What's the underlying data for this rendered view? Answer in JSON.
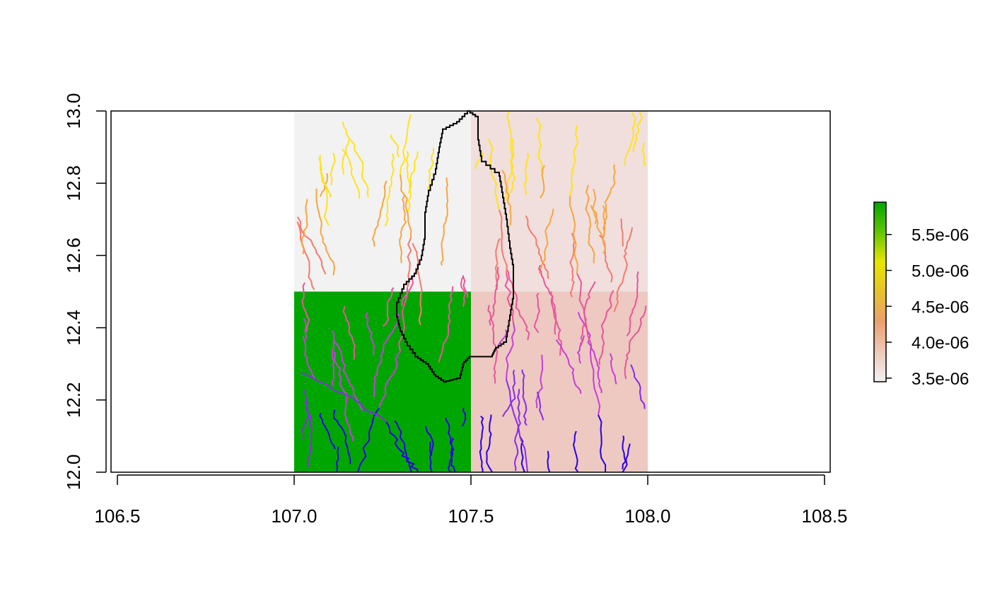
{
  "chart_data": {
    "type": "heatmap",
    "title": "",
    "xlabel": "",
    "ylabel": "",
    "xlim": [
      106.5,
      108.5
    ],
    "ylim": [
      12.0,
      13.0
    ],
    "x_ticks": [
      "106.5",
      "107.0",
      "107.5",
      "108.0",
      "108.5"
    ],
    "y_ticks": [
      "12.0",
      "12.2",
      "12.4",
      "12.6",
      "12.8",
      "13.0"
    ],
    "raster_cells": [
      {
        "x": [
          107.0,
          107.5
        ],
        "y": [
          12.5,
          13.0
        ],
        "value": 3.45e-06,
        "color": "#f2f2f2"
      },
      {
        "x": [
          107.5,
          108.0
        ],
        "y": [
          12.5,
          13.0
        ],
        "value": 3.6e-06,
        "color": "#f0dfdd"
      },
      {
        "x": [
          107.0,
          107.5
        ],
        "y": [
          12.0,
          12.5
        ],
        "value": 5.95e-06,
        "color": "#00a600"
      },
      {
        "x": [
          107.5,
          108.0
        ],
        "y": [
          12.0,
          12.5
        ],
        "value": 3.7e-06,
        "color": "#edc9c1"
      }
    ],
    "legend": {
      "position": "right",
      "ticks": [
        "5.5e-06",
        "5.0e-06",
        "4.5e-06",
        "4.0e-06",
        "3.5e-06"
      ],
      "tick_values": [
        5.5e-06,
        5e-06,
        4.5e-06,
        4e-06,
        3.5e-06
      ],
      "range": [
        3.45e-06,
        5.95e-06
      ],
      "colors": [
        "#f2f2f2",
        "#eec9b8",
        "#eba070",
        "#e6c22a",
        "#e8e600",
        "#63c600",
        "#00a600"
      ]
    },
    "stream_colors": [
      "#ffe31a",
      "#f6a640",
      "#f47a6e",
      "#e8559b",
      "#c93ddb",
      "#8a2be8",
      "#2b00e6"
    ],
    "basin_outline_color": "#000000",
    "rivers_description_value": "stream network colored by order, basin outline in black"
  }
}
